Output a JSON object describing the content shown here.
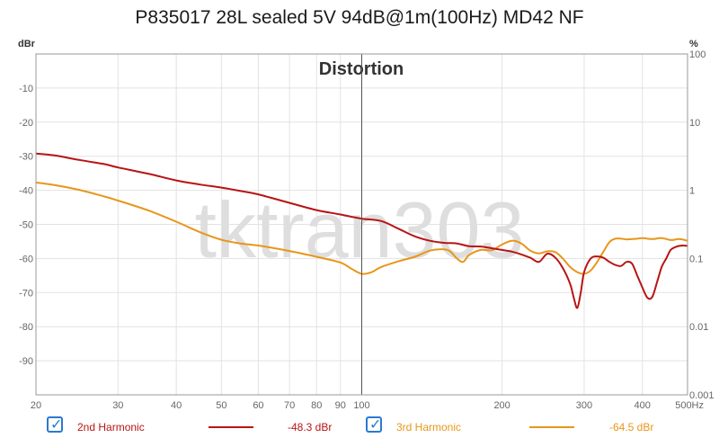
{
  "title": "P835017 28L sealed 5V 94dB@1m(100Hz) MD42 NF",
  "watermark": "tktran303",
  "chart_data": {
    "type": "line",
    "title": "Distortion",
    "y_unit_left": "dBr",
    "y_unit_right": "%",
    "x_unit": "Hz",
    "x_scale": "log",
    "xlim": [
      20,
      500
    ],
    "ylim": [
      -100,
      0
    ],
    "y2_scale": "log",
    "y2lim": [
      0.001,
      100
    ],
    "x_ticks": [
      20,
      30,
      40,
      50,
      60,
      70,
      80,
      90,
      100,
      200,
      300,
      400,
      500
    ],
    "x_tick_labels": [
      "20",
      "30",
      "40",
      "50",
      "60",
      "70",
      "80",
      "90",
      "100",
      "200",
      "300",
      "400",
      "500Hz"
    ],
    "y_ticks": [
      -10,
      -20,
      -30,
      -40,
      -50,
      -60,
      -70,
      -80,
      -90
    ],
    "y_tick_labels": [
      "-10",
      "-20",
      "-30",
      "-40",
      "-50",
      "-60",
      "-70",
      "-80",
      "-90"
    ],
    "y2_ticks": [
      100,
      10,
      1,
      0.1,
      0.01,
      0.001
    ],
    "y2_tick_labels": [
      "100",
      "10",
      "1",
      "0.1",
      "0.01",
      "0.001"
    ],
    "grid": true,
    "cursor_x": 100,
    "series": [
      {
        "name": "2nd Harmonic",
        "color": "#b81414",
        "cursor_value": "-48.3 dBr",
        "x": [
          20,
          22,
          25,
          28,
          30,
          35,
          40,
          45,
          50,
          55,
          60,
          70,
          80,
          90,
          100,
          110,
          120,
          130,
          140,
          150,
          160,
          170,
          180,
          190,
          200,
          210,
          220,
          230,
          240,
          250,
          260,
          270,
          280,
          285,
          290,
          295,
          300,
          310,
          320,
          330,
          340,
          350,
          360,
          370,
          380,
          390,
          400,
          410,
          420,
          430,
          440,
          450,
          460,
          470,
          480,
          490,
          500
        ],
        "y": [
          -29.2,
          -29.8,
          -31.2,
          -32.3,
          -33.3,
          -35.2,
          -37.1,
          -38.3,
          -39.2,
          -40.2,
          -41.2,
          -43.7,
          -45.8,
          -47.1,
          -48.3,
          -49.0,
          -51.3,
          -53.5,
          -54.8,
          -55.4,
          -55.6,
          -56.4,
          -56.5,
          -57.0,
          -57.5,
          -58.0,
          -58.8,
          -59.8,
          -61.0,
          -58.6,
          -59.7,
          -62.8,
          -67.5,
          -71.5,
          -74.5,
          -70.0,
          -64.0,
          -60.0,
          -59.4,
          -59.8,
          -61.0,
          -61.9,
          -62.2,
          -61.0,
          -61.5,
          -65.0,
          -68.5,
          -71.5,
          -71.3,
          -67.0,
          -62.5,
          -60.0,
          -57.5,
          -56.7,
          -56.3,
          -56.2,
          -56.3
        ]
      },
      {
        "name": "3rd Harmonic",
        "color": "#e8961a",
        "cursor_value": "-64.5 dBr",
        "x": [
          20,
          22,
          25,
          28,
          30,
          35,
          40,
          45,
          50,
          55,
          60,
          70,
          80,
          90,
          95,
          100,
          105,
          110,
          120,
          130,
          140,
          150,
          155,
          160,
          165,
          170,
          180,
          190,
          200,
          210,
          220,
          230,
          240,
          250,
          260,
          270,
          280,
          290,
          300,
          310,
          320,
          330,
          340,
          350,
          360,
          370,
          380,
          390,
          400,
          420,
          440,
          460,
          480,
          500
        ],
        "y": [
          -37.7,
          -38.5,
          -40.0,
          -41.8,
          -43.0,
          -46.0,
          -49.2,
          -52.3,
          -54.5,
          -55.6,
          -56.2,
          -57.8,
          -59.5,
          -61.2,
          -63.0,
          -64.5,
          -64.0,
          -62.5,
          -60.8,
          -59.5,
          -57.7,
          -57.3,
          -58.0,
          -60.0,
          -61.0,
          -59.0,
          -57.5,
          -57.6,
          -55.9,
          -54.8,
          -55.6,
          -57.7,
          -58.5,
          -57.9,
          -58.1,
          -60.0,
          -62.5,
          -64.0,
          -64.5,
          -63.5,
          -61.0,
          -58.0,
          -55.2,
          -54.2,
          -54.2,
          -54.4,
          -54.3,
          -54.2,
          -54.0,
          -54.3,
          -54.0,
          -54.6,
          -54.3,
          -54.8
        ]
      }
    ]
  }
}
